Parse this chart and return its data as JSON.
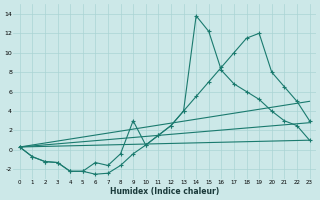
{
  "background_color": "#cce8e8",
  "grid_color": "#aad4d4",
  "line_color": "#1a7a6e",
  "xlabel": "Humidex (Indice chaleur)",
  "xlim": [
    -0.5,
    23.5
  ],
  "ylim": [
    -3.0,
    15.0
  ],
  "line1_x": [
    0,
    1,
    2,
    3,
    4,
    5,
    6,
    7,
    8,
    9,
    10,
    11,
    12,
    13,
    14,
    15,
    16,
    17,
    18,
    19,
    20,
    21,
    22,
    23
  ],
  "line1_y": [
    0.3,
    -0.7,
    -1.2,
    -1.3,
    -2.2,
    -2.2,
    -2.5,
    -2.4,
    -1.6,
    -0.4,
    0.5,
    1.5,
    2.5,
    4.0,
    5.5,
    7.0,
    8.5,
    10.0,
    11.5,
    12.0,
    8.0,
    6.5,
    5.0,
    3.0
  ],
  "line2_x": [
    0,
    1,
    2,
    3,
    4,
    5,
    6,
    7,
    8,
    9,
    10,
    11,
    12,
    13,
    14,
    15,
    16,
    17,
    18,
    19,
    20,
    21,
    22,
    23
  ],
  "line2_y": [
    0.3,
    -0.7,
    -1.2,
    -1.3,
    -2.2,
    -2.2,
    -1.3,
    -1.6,
    -0.4,
    3.0,
    0.5,
    1.5,
    2.5,
    4.0,
    13.8,
    12.2,
    8.2,
    6.8,
    6.0,
    5.2,
    4.0,
    3.0,
    2.5,
    1.0
  ],
  "line3_x": [
    0,
    23
  ],
  "line3_y": [
    0.3,
    1.0
  ],
  "line4_x": [
    0,
    23
  ],
  "line4_y": [
    0.3,
    2.8
  ],
  "line5_x": [
    0,
    23
  ],
  "line5_y": [
    0.3,
    5.0
  ]
}
